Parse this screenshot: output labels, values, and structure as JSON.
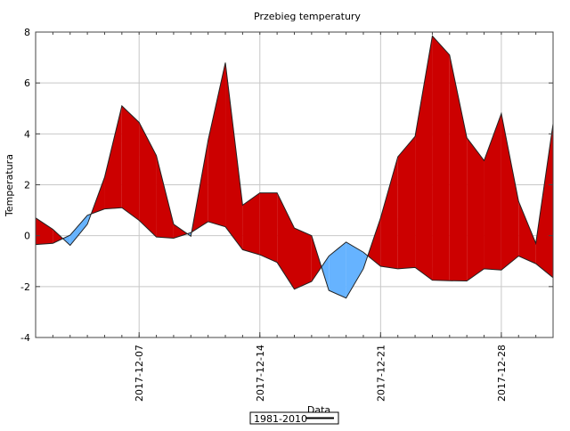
{
  "chart_data": {
    "type": "area",
    "title": "Przebieg temperatury",
    "xlabel": "Data",
    "ylabel": "Temperatura",
    "ylim": [
      -4,
      8
    ],
    "yticks": [
      "-4",
      "-2",
      "0",
      "2",
      "4",
      "6",
      "8"
    ],
    "xlim": [
      "2017-12-01",
      "2017-12-31"
    ],
    "xticks": [
      "2017-12-07",
      "2017-12-14",
      "2017-12-21",
      "2017-12-28"
    ],
    "grid": true,
    "legend_placement": "bottom",
    "fill_above_color": "#cc0000",
    "fill_below_color": "#66b3ff",
    "x": [
      "2017-12-01",
      "2017-12-02",
      "2017-12-03",
      "2017-12-04",
      "2017-12-05",
      "2017-12-06",
      "2017-12-07",
      "2017-12-08",
      "2017-12-09",
      "2017-12-10",
      "2017-12-11",
      "2017-12-12",
      "2017-12-13",
      "2017-12-14",
      "2017-12-15",
      "2017-12-16",
      "2017-12-17",
      "2017-12-18",
      "2017-12-19",
      "2017-12-20",
      "2017-12-21",
      "2017-12-22",
      "2017-12-23",
      "2017-12-24",
      "2017-12-25",
      "2017-12-26",
      "2017-12-27",
      "2017-12-28",
      "2017-12-29",
      "2017-12-30",
      "2017-12-31"
    ],
    "series": [
      {
        "values": [
          0.7,
          0.25,
          -0.38,
          0.45,
          2.3,
          5.1,
          4.45,
          3.15,
          0.45,
          -0.02,
          3.75,
          6.8,
          1.2,
          1.68,
          1.68,
          0.3,
          0.0,
          -2.15,
          -2.45,
          -1.3,
          0.7,
          3.1,
          3.9,
          7.85,
          7.1,
          3.85,
          2.95,
          4.8,
          1.35,
          -0.3,
          4.4
        ]
      },
      {
        "name": "1981-2010",
        "values": [
          -0.35,
          -0.3,
          0.02,
          0.8,
          1.05,
          1.1,
          0.6,
          -0.05,
          -0.1,
          0.12,
          0.55,
          0.35,
          -0.55,
          -0.75,
          -1.05,
          -2.1,
          -1.8,
          -0.8,
          -0.25,
          -0.65,
          -1.2,
          -1.3,
          -1.25,
          -1.75,
          -1.77,
          -1.78,
          -1.3,
          -1.35,
          -0.8,
          -1.1,
          -1.65
        ]
      }
    ]
  }
}
